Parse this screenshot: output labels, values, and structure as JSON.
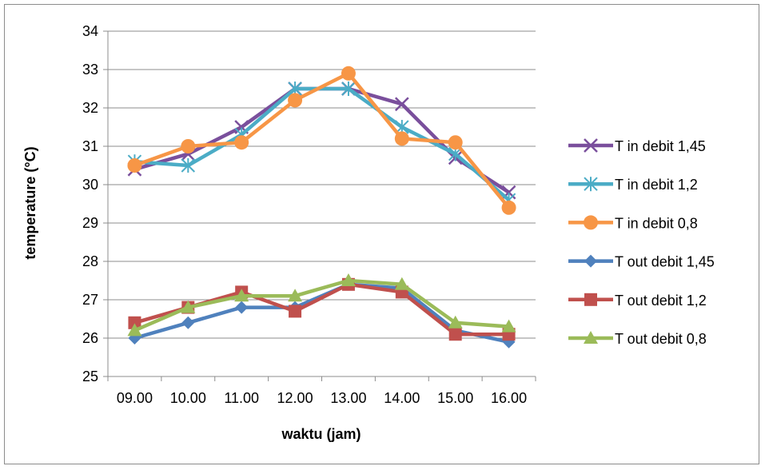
{
  "chart_data": {
    "type": "line",
    "title": "",
    "xlabel": "waktu (jam)",
    "ylabel": "temperature (°C)",
    "ylim": [
      25,
      34
    ],
    "yticks": [
      25,
      26,
      27,
      28,
      29,
      30,
      31,
      32,
      33,
      34
    ],
    "categories": [
      "09.00",
      "10.00",
      "11.00",
      "12.00",
      "13.00",
      "14.00",
      "15.00",
      "16.00"
    ],
    "grid": true,
    "legend_position": "right",
    "series": [
      {
        "name": "T in debit 1,45",
        "color": "#7a4f9c",
        "marker": "x",
        "values": [
          30.4,
          30.8,
          31.5,
          32.5,
          32.5,
          32.1,
          30.7,
          29.8
        ]
      },
      {
        "name": "T in debit 1,2",
        "color": "#4bacc6",
        "marker": "star",
        "values": [
          30.6,
          30.5,
          31.3,
          32.5,
          32.5,
          31.5,
          30.8,
          29.6
        ]
      },
      {
        "name": "T in debit 0,8",
        "color": "#f79646",
        "marker": "circle",
        "values": [
          30.5,
          31.0,
          31.1,
          32.2,
          32.9,
          31.2,
          31.1,
          29.4
        ]
      },
      {
        "name": "T out debit 1,45",
        "color": "#4f81bd",
        "marker": "diamond",
        "values": [
          26.0,
          26.4,
          26.8,
          26.8,
          27.4,
          27.3,
          26.2,
          25.9
        ]
      },
      {
        "name": "T out debit 1,2",
        "color": "#c0504d",
        "marker": "square",
        "values": [
          26.4,
          26.8,
          27.2,
          26.7,
          27.4,
          27.2,
          26.1,
          26.1
        ]
      },
      {
        "name": "T out debit 0,8",
        "color": "#9bbb59",
        "marker": "triangle",
        "values": [
          26.2,
          26.8,
          27.1,
          27.1,
          27.5,
          27.4,
          26.4,
          26.3
        ]
      }
    ]
  }
}
